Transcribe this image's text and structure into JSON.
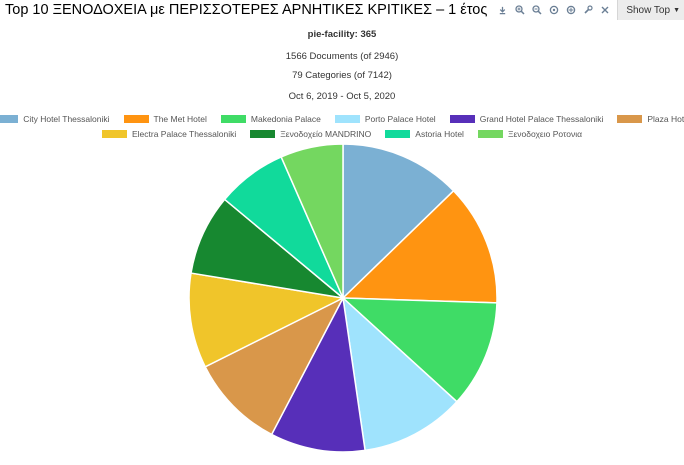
{
  "page": {
    "title": "Top 10 ΞΕΝΟΔΟΧΕΙΑ με ΠΕΡΙΣΣΟΤΕΡΕΣ ΑΡΝΗΤΙΚΕΣ ΚΡΙΤΙΚΕΣ – 1 έτος"
  },
  "toolbar": {
    "icons": [
      "download-icon",
      "zoom-in-icon",
      "zoom-out-icon",
      "zoom-fit-icon",
      "pan-icon",
      "settings-icon",
      "close-icon"
    ],
    "show_top_label": "Show Top"
  },
  "info": {
    "facility": "pie-facility: 365",
    "documents": "1566 Documents (of 2946)",
    "categories": "79 Categories (of 7142)",
    "date_range": "Oct 6, 2019 - Oct 5, 2020"
  },
  "chart_data": {
    "type": "pie",
    "title": "",
    "labels": [
      "City Hotel Thessaloniki",
      "The Met Hotel",
      "Makedonia Palace",
      "Porto Palace Hotel",
      "Grand Hotel Palace Thessaloniki",
      "Plaza Hotel",
      "Electra Palace Thessaloniki",
      "Ξενοδοχείο MANDRINO",
      "Astoria Hotel",
      "Ξενοδοχειο Ροτονια"
    ],
    "values": [
      12.8,
      12.8,
      11.3,
      11.0,
      10.0,
      10.0,
      10.0,
      8.5,
      7.4,
      6.6
    ],
    "colors": [
      "#7bb0d3",
      "#ff9411",
      "#3fdc66",
      "#9fe3fd",
      "#572fb9",
      "#d9974a",
      "#f0c52a",
      "#178830",
      "#11da9b",
      "#74d760"
    ],
    "start": "12 o'clock, clockwise",
    "legend_position": "top"
  }
}
